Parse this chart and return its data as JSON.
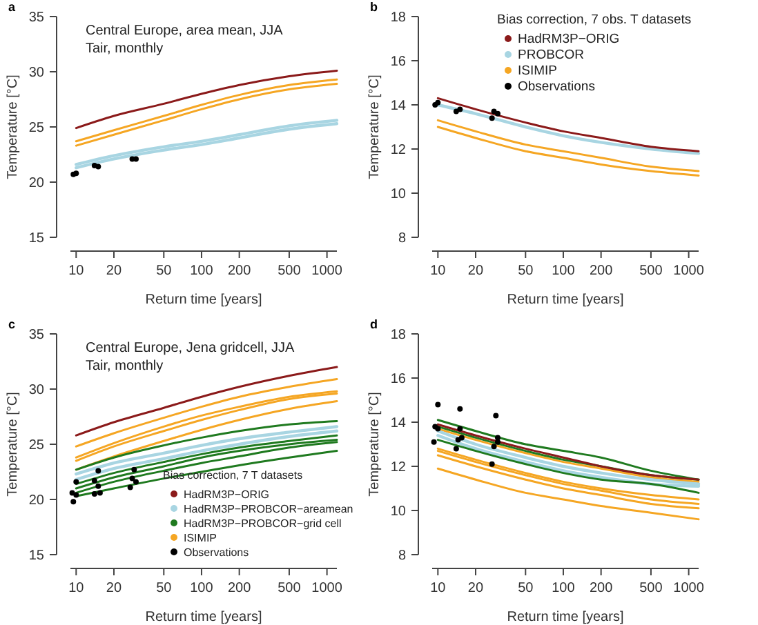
{
  "chart_data": [
    {
      "type": "line",
      "title": "a",
      "annotations": [
        "Central Europe, area mean, JJA",
        "Tair, monthly"
      ],
      "xlabel": "Return time [years]",
      "ylabel": "Temperature [°C]",
      "log": "x",
      "xlim": [
        9,
        1200
      ],
      "xticks": [
        10,
        20,
        50,
        100,
        200,
        500,
        1000
      ],
      "ylim": [
        15,
        35
      ],
      "yticks": [
        15,
        20,
        25,
        30,
        35
      ],
      "legend": false,
      "x": [
        10,
        20,
        50,
        100,
        200,
        500,
        1200
      ],
      "series": [
        {
          "color": "#8b1a1a",
          "values": [
            24.9,
            26.0,
            27.1,
            28.0,
            28.8,
            29.6,
            30.1
          ]
        },
        {
          "color": "#a8d5e2",
          "values": [
            21.6,
            22.4,
            23.2,
            23.7,
            24.3,
            25.1,
            25.6
          ]
        },
        {
          "color": "#a8d5e2",
          "values": [
            21.3,
            22.1,
            22.9,
            23.4,
            24.0,
            24.8,
            25.3
          ]
        },
        {
          "color": "#f5a623",
          "values": [
            23.7,
            24.7,
            26.0,
            27.0,
            27.9,
            28.8,
            29.3
          ]
        },
        {
          "color": "#f5a623",
          "values": [
            23.3,
            24.3,
            25.6,
            26.6,
            27.5,
            28.4,
            28.9
          ]
        },
        {
          "type": "scatter",
          "color": "#000000",
          "x": [
            9.5,
            10,
            14,
            15,
            28,
            30
          ],
          "values": [
            20.7,
            20.8,
            21.5,
            21.4,
            22.1,
            22.1
          ]
        }
      ]
    },
    {
      "type": "line",
      "title": "b",
      "xlabel": "Return time [years]",
      "ylabel": "Temperature [°C]",
      "log": "x",
      "xlim": [
        9,
        1200
      ],
      "xticks": [
        10,
        20,
        50,
        100,
        200,
        500,
        1000
      ],
      "ylim": [
        8,
        18
      ],
      "yticks": [
        8,
        10,
        12,
        14,
        16,
        18
      ],
      "legend": "top right",
      "legend_title": "Bias correction, 7 obs. T datasets",
      "x": [
        10,
        20,
        50,
        100,
        200,
        500,
        1200
      ],
      "series": [
        {
          "name": "HadRM3P−ORIG",
          "color": "#8b1a1a",
          "values": [
            14.3,
            13.8,
            13.2,
            12.8,
            12.5,
            12.1,
            11.9
          ]
        },
        {
          "name": "PROBCOR",
          "color": "#a8d5e2",
          "values": [
            14.0,
            13.6,
            13.0,
            12.6,
            12.3,
            12.0,
            11.8
          ]
        },
        {
          "name": "ISIMIP",
          "color": "#f5a623",
          "values": [
            13.3,
            12.8,
            12.2,
            11.9,
            11.6,
            11.2,
            11.0
          ]
        },
        {
          "color": "#f5a623",
          "values": [
            13.0,
            12.5,
            11.9,
            11.6,
            11.3,
            11.0,
            10.8
          ]
        },
        {
          "name": "Observations",
          "type": "scatter",
          "color": "#000000",
          "x": [
            9.5,
            10,
            14,
            15,
            27,
            28,
            30
          ],
          "values": [
            14.0,
            14.1,
            13.7,
            13.8,
            13.4,
            13.7,
            13.6
          ]
        }
      ]
    },
    {
      "type": "line",
      "title": "c",
      "annotations": [
        "Central Europe, Jena gridcell, JJA",
        "Tair, monthly"
      ],
      "xlabel": "Return time [years]",
      "ylabel": "Temperature [°C]",
      "log": "x",
      "xlim": [
        9,
        1200
      ],
      "xticks": [
        10,
        20,
        50,
        100,
        200,
        500,
        1000
      ],
      "ylim": [
        15,
        35
      ],
      "yticks": [
        15,
        20,
        25,
        30,
        35
      ],
      "legend": "bottom right",
      "legend_title": "Bias correction, 7 T datasets",
      "x": [
        10,
        20,
        50,
        100,
        200,
        500,
        1200
      ],
      "series": [
        {
          "name": "HadRM3P−ORIG",
          "color": "#8b1a1a",
          "values": [
            25.8,
            27.0,
            28.3,
            29.3,
            30.2,
            31.2,
            32.0
          ]
        },
        {
          "name": "HadRM3P−PROBCOR−areamean",
          "color": "#a8d5e2",
          "values": [
            22.3,
            23.3,
            24.2,
            24.9,
            25.5,
            26.1,
            26.6
          ]
        },
        {
          "color": "#a8d5e2",
          "values": [
            21.8,
            22.8,
            23.7,
            24.4,
            25.0,
            25.7,
            26.2
          ]
        },
        {
          "name": "HadRM3P−PROBCOR−grid cell",
          "color": "#1f7a1f",
          "values": [
            22.7,
            23.8,
            24.9,
            25.6,
            26.2,
            26.8,
            27.1
          ]
        },
        {
          "color": "#1f7a1f",
          "values": [
            21.4,
            22.4,
            23.4,
            24.1,
            24.7,
            25.3,
            25.8
          ]
        },
        {
          "color": "#1f7a1f",
          "values": [
            21.0,
            22.0,
            23.0,
            23.8,
            24.4,
            25.0,
            25.4
          ]
        },
        {
          "color": "#1f7a1f",
          "values": [
            20.6,
            21.6,
            22.6,
            23.3,
            23.9,
            24.7,
            25.2
          ]
        },
        {
          "color": "#1f7a1f",
          "values": [
            20.3,
            21.0,
            21.9,
            22.5,
            23.1,
            23.8,
            24.4
          ]
        },
        {
          "name": "ISIMIP",
          "color": "#f5a623",
          "values": [
            24.8,
            26.0,
            27.4,
            28.4,
            29.3,
            30.2,
            30.9
          ]
        },
        {
          "color": "#f5a623",
          "values": [
            23.8,
            25.1,
            26.6,
            27.6,
            28.4,
            29.3,
            29.8
          ]
        },
        {
          "color": "#f5a623",
          "values": [
            23.5,
            24.8,
            26.2,
            27.2,
            28.1,
            29.1,
            29.6
          ]
        },
        {
          "color": "#f5a623",
          "values": [
            22.7,
            23.9,
            25.3,
            26.3,
            27.2,
            28.2,
            28.9
          ]
        },
        {
          "name": "Observations",
          "type": "scatter",
          "color": "#000000",
          "x": [
            9.3,
            9.5,
            10,
            10,
            14,
            14,
            15,
            15,
            15.5,
            27,
            28,
            29,
            30
          ],
          "values": [
            20.6,
            19.8,
            21.6,
            20.4,
            20.5,
            21.7,
            22.6,
            21.2,
            20.6,
            21.1,
            21.9,
            22.7,
            21.6
          ]
        }
      ]
    },
    {
      "type": "line",
      "title": "d",
      "xlabel": "Return time [years]",
      "ylabel": "Temperature [°C]",
      "log": "x",
      "xlim": [
        9,
        1200
      ],
      "xticks": [
        10,
        20,
        50,
        100,
        200,
        500,
        1000
      ],
      "ylim": [
        8,
        18
      ],
      "yticks": [
        8,
        10,
        12,
        14,
        16,
        18
      ],
      "legend": false,
      "x": [
        10,
        20,
        50,
        100,
        200,
        500,
        1200
      ],
      "series": [
        {
          "color": "#8b1a1a",
          "values": [
            13.9,
            13.4,
            12.8,
            12.4,
            12.0,
            11.6,
            11.4
          ]
        },
        {
          "color": "#1f7a1f",
          "values": [
            14.1,
            13.6,
            13.0,
            12.7,
            12.4,
            11.8,
            11.4
          ]
        },
        {
          "color": "#1f7a1f",
          "values": [
            13.8,
            13.3,
            12.7,
            12.3,
            12.0,
            11.6,
            11.4
          ]
        },
        {
          "color": "#1f7a1f",
          "values": [
            13.2,
            12.7,
            12.1,
            11.7,
            11.4,
            11.2,
            10.8
          ]
        },
        {
          "color": "#a8d5e2",
          "values": [
            13.6,
            13.0,
            12.4,
            12.0,
            11.7,
            11.4,
            11.2
          ]
        },
        {
          "color": "#a8d5e2",
          "values": [
            13.4,
            12.8,
            12.2,
            11.8,
            11.5,
            11.2,
            11.1
          ]
        },
        {
          "color": "#f5a623",
          "values": [
            13.7,
            13.2,
            12.6,
            12.2,
            11.9,
            11.5,
            11.3
          ]
        },
        {
          "color": "#f5a623",
          "values": [
            12.8,
            12.3,
            11.7,
            11.3,
            11.0,
            10.7,
            10.5
          ]
        },
        {
          "color": "#f5a623",
          "values": [
            12.7,
            12.2,
            11.6,
            11.2,
            10.9,
            10.5,
            10.3
          ]
        },
        {
          "color": "#f5a623",
          "values": [
            12.5,
            12.0,
            11.4,
            11.0,
            10.7,
            10.3,
            10.1
          ]
        },
        {
          "color": "#f5a623",
          "values": [
            11.9,
            11.4,
            10.8,
            10.5,
            10.2,
            9.9,
            9.6
          ]
        },
        {
          "type": "scatter",
          "color": "#000000",
          "x": [
            9.3,
            9.5,
            10,
            10,
            14,
            14.5,
            15,
            15,
            15.5,
            27,
            28,
            29,
            30,
            30
          ],
          "values": [
            13.1,
            13.8,
            14.8,
            13.7,
            12.8,
            13.2,
            14.6,
            13.7,
            13.3,
            12.1,
            12.9,
            14.3,
            13.3,
            13.1
          ]
        }
      ]
    }
  ]
}
